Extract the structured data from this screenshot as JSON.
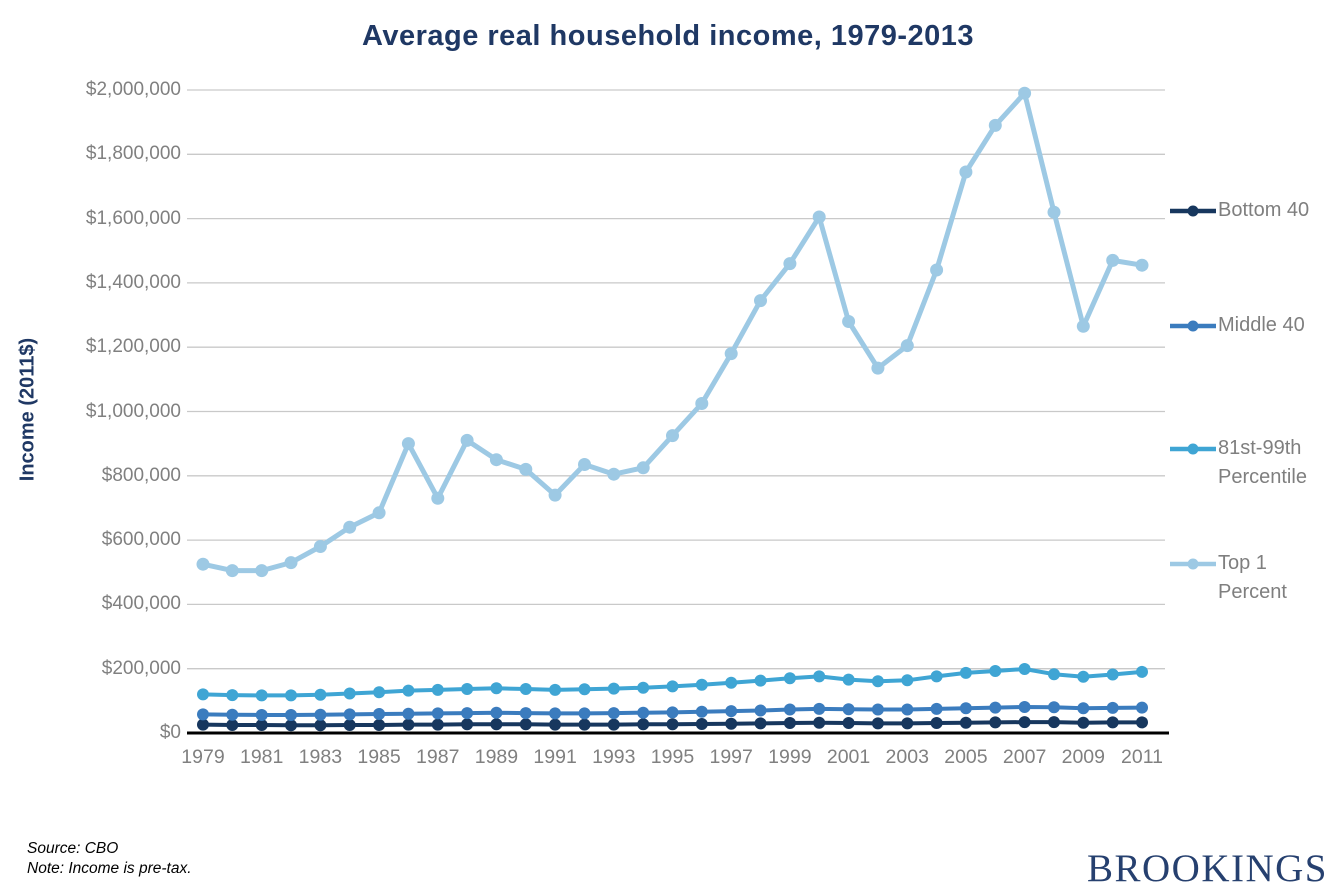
{
  "title": "Average real household income, 1979-2013",
  "y_axis_title": "Income (2011$)",
  "source": {
    "line1": "Source: CBO",
    "line2": "Note: Income is pre-tax."
  },
  "brand": "BROOKINGS",
  "colors": {
    "title": "#1F3864",
    "axis_label": "#808080",
    "gridline": "#C9C9C9",
    "axis_line": "#000000",
    "brand": "#26406F"
  },
  "chart_data": {
    "type": "line",
    "title": "Average real household income, 1979-2013",
    "xlabel": "",
    "ylabel": "Income (2011$)",
    "ylim": [
      0,
      2000000
    ],
    "y_tick_step": 200000,
    "y_tick_labels": [
      "$0",
      "$200,000",
      "$400,000",
      "$600,000",
      "$800,000",
      "$1,000,000",
      "$1,200,000",
      "$1,400,000",
      "$1,600,000",
      "$1,800,000",
      "$2,000,000"
    ],
    "x_tick_years": [
      1979,
      1981,
      1983,
      1985,
      1987,
      1989,
      1991,
      1993,
      1995,
      1997,
      1999,
      2001,
      2003,
      2005,
      2007,
      2009,
      2011
    ],
    "grid": true,
    "legend_position": "right",
    "x": [
      1979,
      1980,
      1981,
      1982,
      1983,
      1984,
      1985,
      1986,
      1987,
      1988,
      1989,
      1990,
      1991,
      1992,
      1993,
      1994,
      1995,
      1996,
      1997,
      1998,
      1999,
      2000,
      2001,
      2002,
      2003,
      2004,
      2005,
      2006,
      2007,
      2008,
      2009,
      2010,
      2011
    ],
    "series": [
      {
        "name": "Bottom 40",
        "color": "#17375E",
        "values": [
          26000,
          25000,
          25000,
          24000,
          24000,
          25000,
          25000,
          26000,
          26000,
          27000,
          27000,
          27000,
          26000,
          26000,
          26000,
          27000,
          27000,
          28000,
          29000,
          30000,
          31000,
          32000,
          31000,
          30000,
          30000,
          31000,
          32000,
          33000,
          34000,
          34000,
          32000,
          33000,
          33000
        ]
      },
      {
        "name": "Middle 40",
        "color": "#3B7CBE",
        "values": [
          58000,
          57000,
          56000,
          56000,
          57000,
          58000,
          59000,
          60000,
          61000,
          62000,
          63000,
          62000,
          61000,
          61000,
          62000,
          63000,
          64000,
          66000,
          68000,
          70000,
          73000,
          75000,
          74000,
          73000,
          73000,
          75000,
          77000,
          79000,
          81000,
          80000,
          77000,
          78000,
          79000
        ]
      },
      {
        "name": "81st-99th Percentile",
        "color": "#3FA5D4",
        "values": [
          120000,
          118000,
          117000,
          117000,
          119000,
          123000,
          127000,
          132000,
          134000,
          137000,
          139000,
          137000,
          134000,
          136000,
          138000,
          141000,
          145000,
          150000,
          156000,
          163000,
          170000,
          176000,
          166000,
          161000,
          164000,
          176000,
          187000,
          193000,
          199000,
          183000,
          175000,
          182000,
          190000
        ]
      },
      {
        "name": "Top 1 Percent",
        "color": "#9DC9E4",
        "values": [
          525000,
          505000,
          505000,
          530000,
          580000,
          640000,
          685000,
          900000,
          730000,
          910000,
          850000,
          820000,
          740000,
          835000,
          805000,
          825000,
          925000,
          1025000,
          1180000,
          1345000,
          1460000,
          1605000,
          1280000,
          1135000,
          1205000,
          1440000,
          1745000,
          1890000,
          1990000,
          1620000,
          1265000,
          1470000,
          1455000
        ]
      }
    ]
  },
  "legend": {
    "entries": [
      {
        "label": "Bottom 40",
        "color": "#17375E"
      },
      {
        "label": "Middle 40",
        "color": "#3B7CBE"
      },
      {
        "label": "81st-99th Percentile",
        "color": "#3FA5D4"
      },
      {
        "label": "Top 1 Percent",
        "color": "#9DC9E4"
      }
    ]
  }
}
